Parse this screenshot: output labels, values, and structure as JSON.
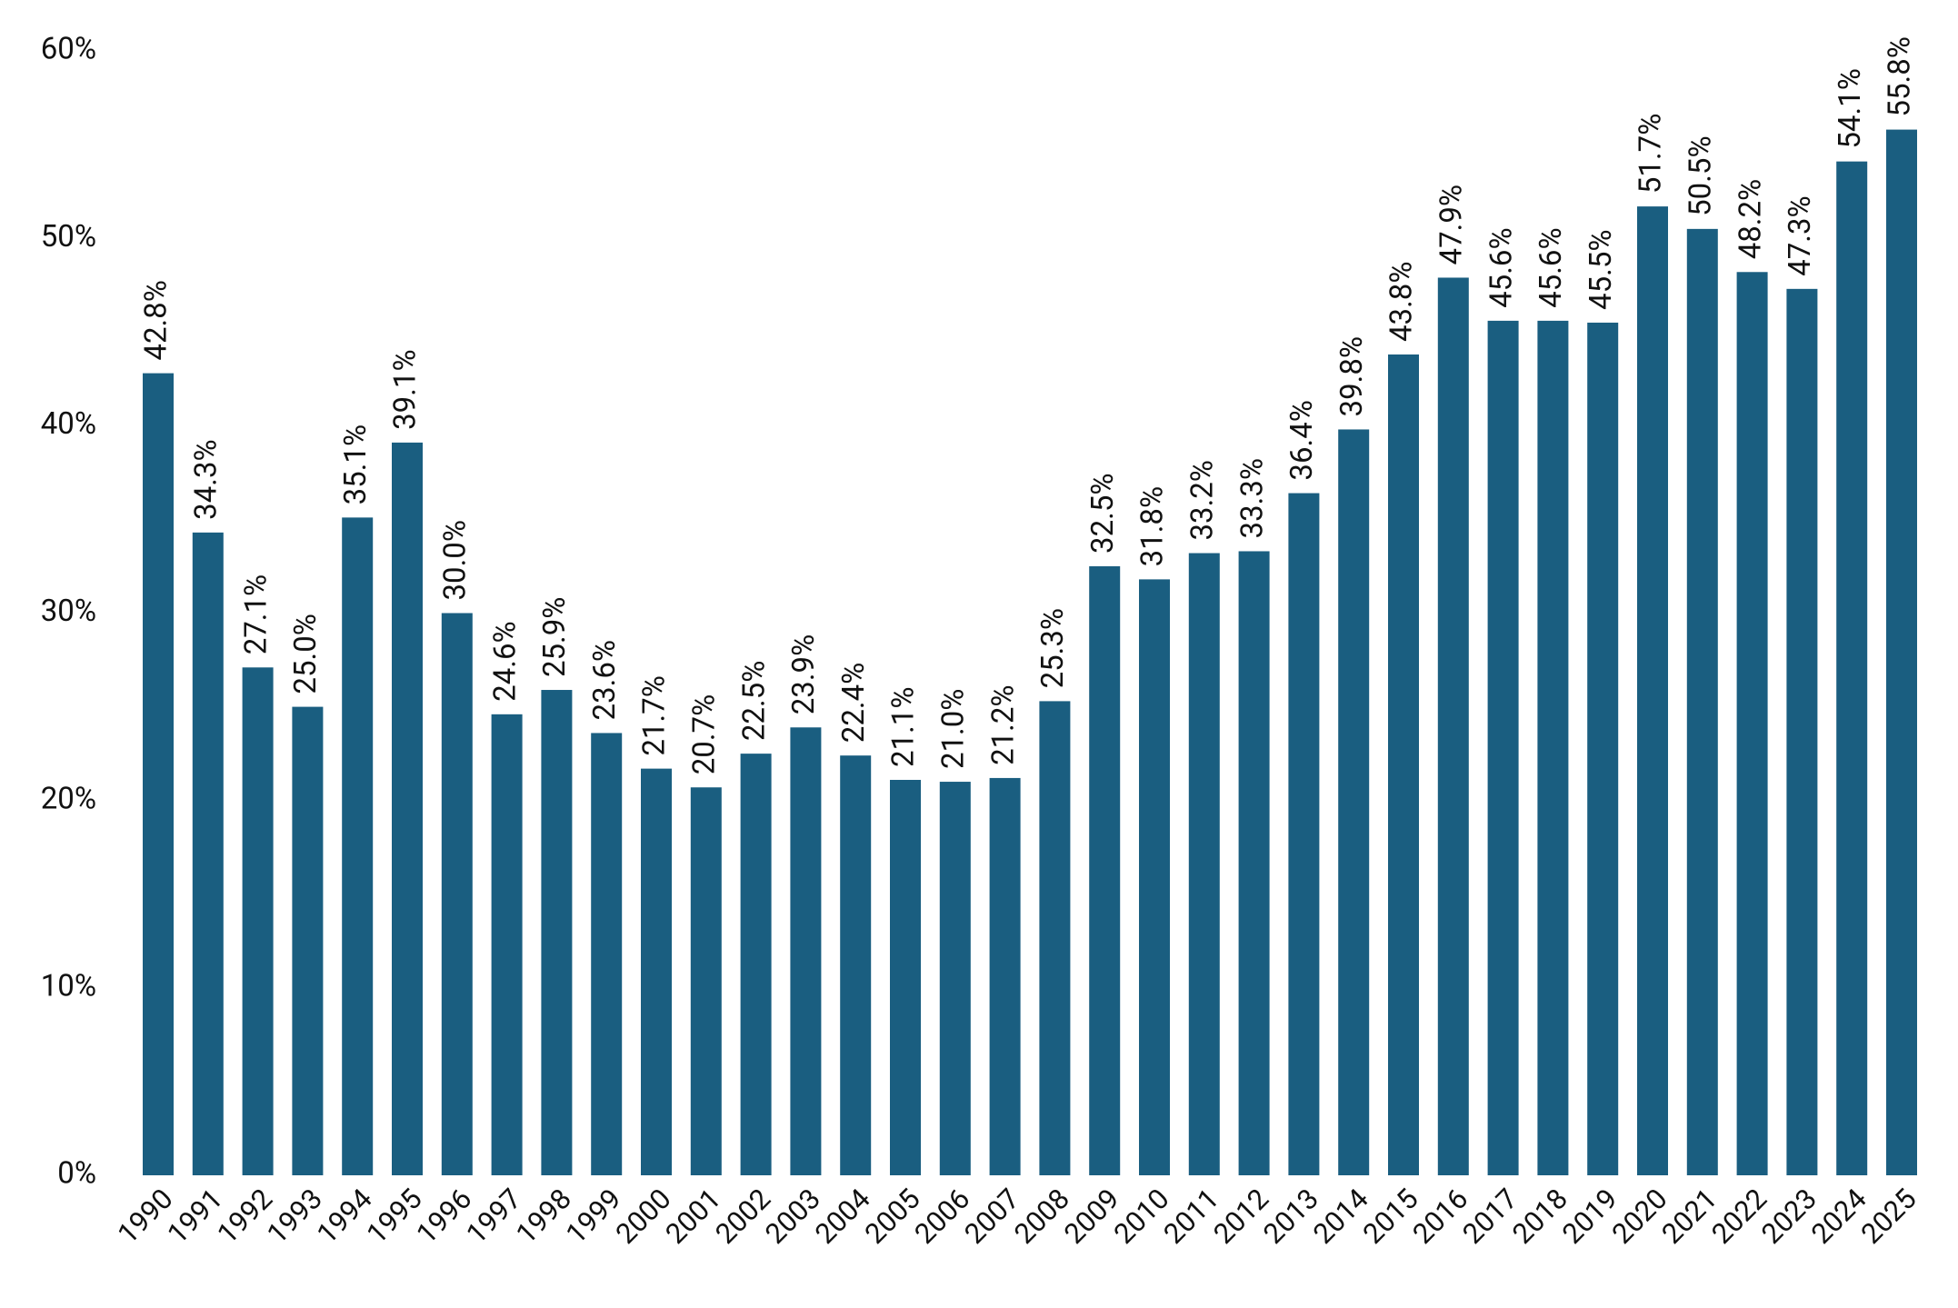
{
  "chart_data": {
    "type": "bar",
    "categories": [
      "1990",
      "1991",
      "1992",
      "1993",
      "1994",
      "1995",
      "1996",
      "1997",
      "1998",
      "1999",
      "2000",
      "2001",
      "2002",
      "2003",
      "2004",
      "2005",
      "2006",
      "2007",
      "2008",
      "2009",
      "2010",
      "2011",
      "2012",
      "2013",
      "2014",
      "2015",
      "2016",
      "2017",
      "2018",
      "2019",
      "2020",
      "2021",
      "2022",
      "2023",
      "2024",
      "2025"
    ],
    "values": [
      42.8,
      34.3,
      27.1,
      25.0,
      35.1,
      39.1,
      30.0,
      24.6,
      25.9,
      23.6,
      21.7,
      20.7,
      22.5,
      23.9,
      22.4,
      21.1,
      21.0,
      21.2,
      25.3,
      32.5,
      31.8,
      33.2,
      33.3,
      36.4,
      39.8,
      43.8,
      47.9,
      45.6,
      45.6,
      45.5,
      51.7,
      50.5,
      48.2,
      47.3,
      54.1,
      55.8
    ],
    "value_labels": [
      "42.8%",
      "34.3%",
      "27.1%",
      "25.0%",
      "35.1%",
      "39.1%",
      "30.0%",
      "24.6%",
      "25.9%",
      "23.6%",
      "21.7%",
      "20.7%",
      "22.5%",
      "23.9%",
      "22.4%",
      "21.1%",
      "21.0%",
      "21.2%",
      "25.3%",
      "32.5%",
      "31.8%",
      "33.2%",
      "33.3%",
      "36.4%",
      "39.8%",
      "43.8%",
      "47.9%",
      "45.6%",
      "45.6%",
      "45.5%",
      "51.7%",
      "50.5%",
      "48.2%",
      "47.3%",
      "54.1%",
      "55.8%"
    ],
    "color": "#1a5e80",
    "ylim": [
      0,
      60
    ],
    "yticks": [
      {
        "value": 0,
        "label": "0%"
      },
      {
        "value": 10,
        "label": "10%"
      },
      {
        "value": 20,
        "label": "20%"
      },
      {
        "value": 30,
        "label": "30%"
      },
      {
        "value": 40,
        "label": "40%"
      },
      {
        "value": 50,
        "label": "50%"
      },
      {
        "value": 60,
        "label": "60%"
      }
    ],
    "grid": false
  }
}
